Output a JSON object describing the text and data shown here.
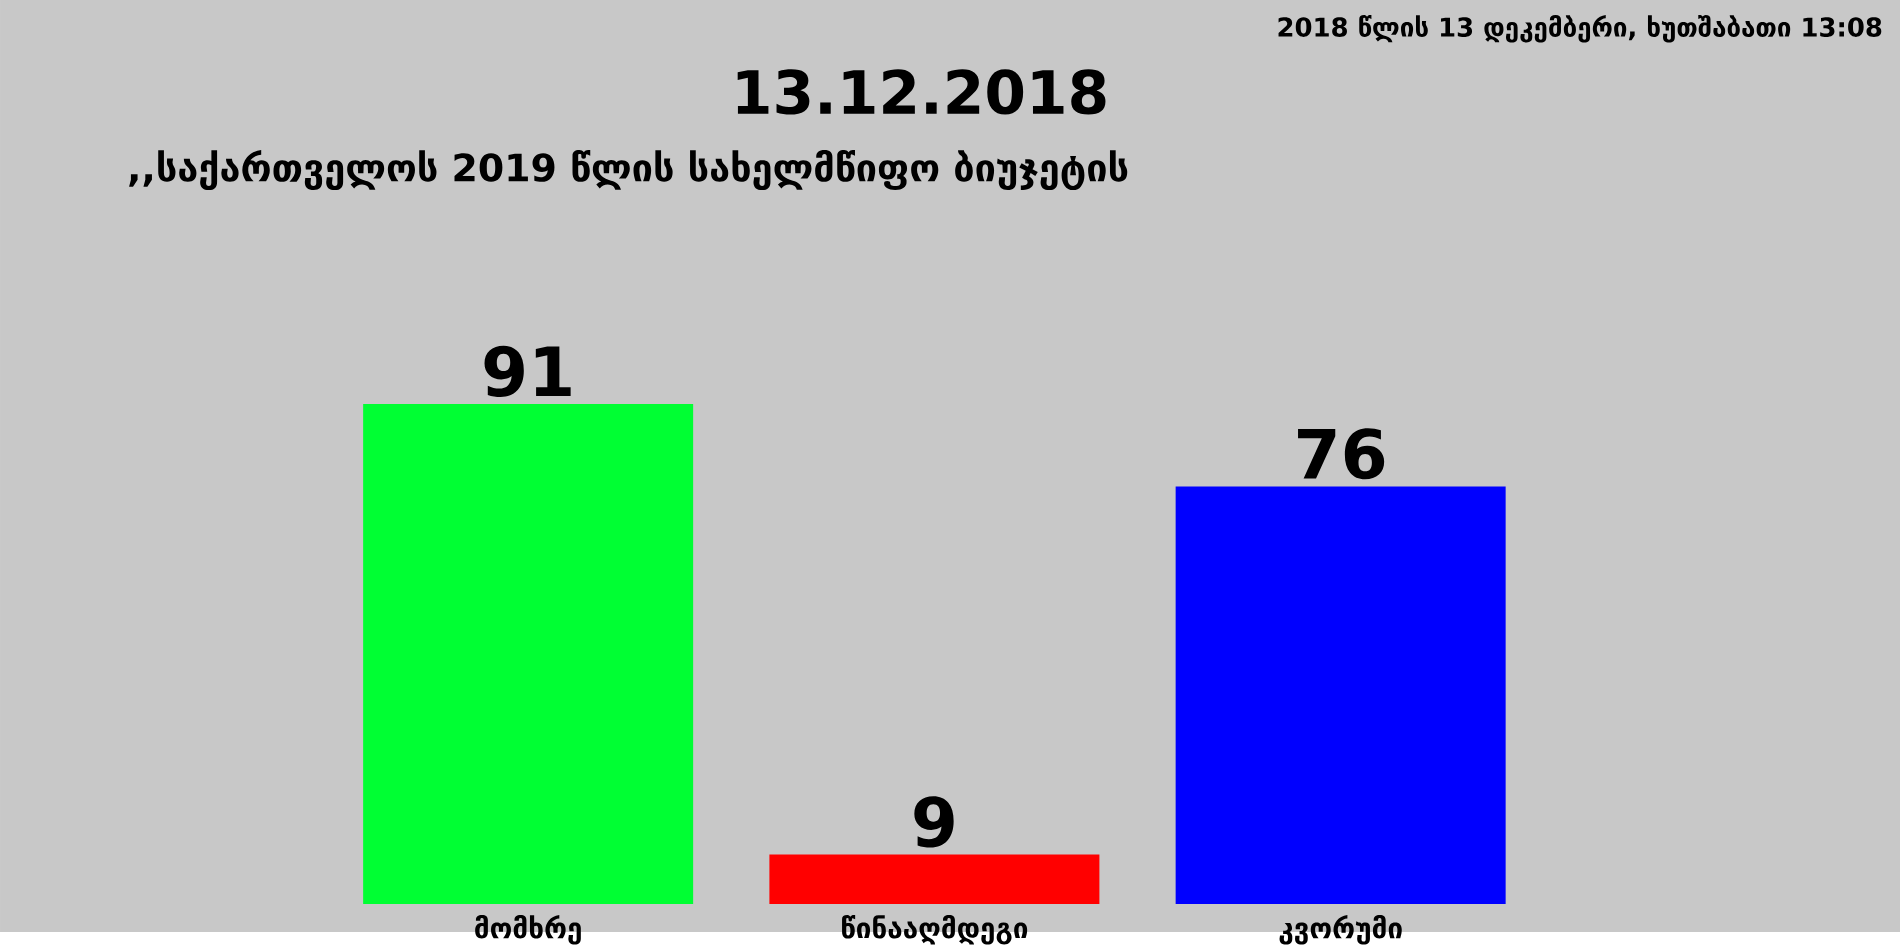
{
  "chart_data": {
    "type": "bar",
    "title": "13.12.2018",
    "subtitle": ",,საქართველოს 2019 წლის სახელმწიფო ბიუჯეტის",
    "annotations": [
      "2018 წლის 13 დეკემბერი, ხუთშაბათი 13:08"
    ],
    "categories": [
      "მომხრე",
      "წინააღმდეგი",
      "კვორუმი"
    ],
    "values": [
      91,
      9,
      76
    ],
    "colors": [
      "#00ff33",
      "#ff0000",
      "#0000ff"
    ],
    "data_labels": true
  }
}
